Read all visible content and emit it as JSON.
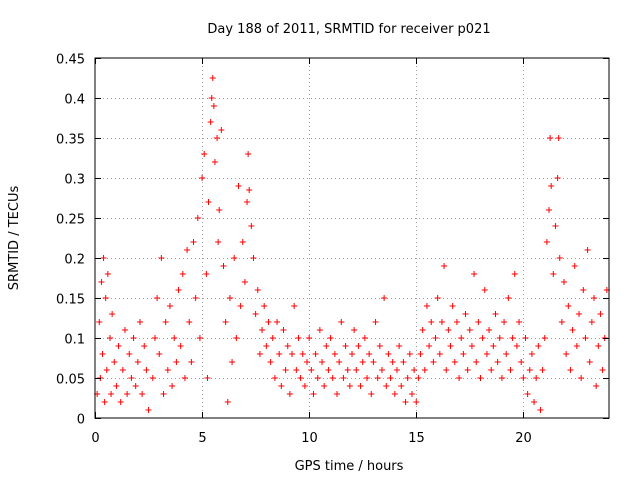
{
  "chart_data": {
    "type": "scatter",
    "title": "Day 188 of 2011, SRMTID for receiver p021",
    "xlabel": "GPS time / hours",
    "ylabel": "SRMTID / TECUs",
    "xlim": [
      0,
      24
    ],
    "ylim": [
      0,
      0.45
    ],
    "xticks": [
      0,
      5,
      10,
      15,
      20
    ],
    "xtick_labels": [
      "0",
      "5",
      "10",
      "15",
      "20"
    ],
    "yticks": [
      0,
      0.05,
      0.1,
      0.15,
      0.2,
      0.25,
      0.3,
      0.35,
      0.4,
      0.45
    ],
    "ytick_labels": [
      "0",
      "0.05",
      "0.1",
      "0.15",
      "0.2",
      "0.25",
      "0.3",
      "0.35",
      "0.4",
      "0.45"
    ],
    "grid": true,
    "marker": "+",
    "color": "#ff0000",
    "series": [
      {
        "name": "SRMTID",
        "points": [
          [
            0.1,
            0.03
          ],
          [
            0.2,
            0.12
          ],
          [
            0.25,
            0.05
          ],
          [
            0.3,
            0.17
          ],
          [
            0.35,
            0.08
          ],
          [
            0.4,
            0.2
          ],
          [
            0.45,
            0.02
          ],
          [
            0.5,
            0.15
          ],
          [
            0.55,
            0.06
          ],
          [
            0.6,
            0.18
          ],
          [
            0.7,
            0.1
          ],
          [
            0.75,
            0.03
          ],
          [
            0.8,
            0.13
          ],
          [
            0.9,
            0.07
          ],
          [
            1.0,
            0.04
          ],
          [
            1.1,
            0.09
          ],
          [
            1.2,
            0.02
          ],
          [
            1.3,
            0.06
          ],
          [
            1.4,
            0.11
          ],
          [
            1.5,
            0.03
          ],
          [
            1.6,
            0.08
          ],
          [
            1.7,
            0.05
          ],
          [
            1.8,
            0.1
          ],
          [
            1.9,
            0.04
          ],
          [
            2.0,
            0.07
          ],
          [
            2.1,
            0.12
          ],
          [
            2.2,
            0.03
          ],
          [
            2.3,
            0.09
          ],
          [
            2.4,
            0.06
          ],
          [
            2.5,
            0.01
          ],
          [
            2.7,
            0.05
          ],
          [
            2.8,
            0.1
          ],
          [
            2.9,
            0.15
          ],
          [
            3.0,
            0.08
          ],
          [
            3.1,
            0.2
          ],
          [
            3.2,
            0.03
          ],
          [
            3.3,
            0.12
          ],
          [
            3.4,
            0.06
          ],
          [
            3.5,
            0.14
          ],
          [
            3.6,
            0.04
          ],
          [
            3.7,
            0.1
          ],
          [
            3.8,
            0.07
          ],
          [
            3.9,
            0.16
          ],
          [
            4.0,
            0.09
          ],
          [
            4.1,
            0.18
          ],
          [
            4.2,
            0.05
          ],
          [
            4.3,
            0.21
          ],
          [
            4.4,
            0.12
          ],
          [
            4.5,
            0.07
          ],
          [
            4.6,
            0.22
          ],
          [
            4.7,
            0.15
          ],
          [
            4.8,
            0.25
          ],
          [
            4.9,
            0.1
          ],
          [
            5.0,
            0.3
          ],
          [
            5.1,
            0.33
          ],
          [
            5.2,
            0.18
          ],
          [
            5.25,
            0.05
          ],
          [
            5.3,
            0.27
          ],
          [
            5.4,
            0.37
          ],
          [
            5.45,
            0.4
          ],
          [
            5.5,
            0.425
          ],
          [
            5.55,
            0.39
          ],
          [
            5.6,
            0.32
          ],
          [
            5.7,
            0.35
          ],
          [
            5.75,
            0.22
          ],
          [
            5.8,
            0.26
          ],
          [
            5.9,
            0.36
          ],
          [
            6.0,
            0.19
          ],
          [
            6.1,
            0.12
          ],
          [
            6.2,
            0.02
          ],
          [
            6.3,
            0.15
          ],
          [
            6.4,
            0.07
          ],
          [
            6.5,
            0.2
          ],
          [
            6.6,
            0.1
          ],
          [
            6.7,
            0.29
          ],
          [
            6.8,
            0.14
          ],
          [
            6.9,
            0.22
          ],
          [
            7.0,
            0.17
          ],
          [
            7.1,
            0.27
          ],
          [
            7.15,
            0.33
          ],
          [
            7.2,
            0.285
          ],
          [
            7.3,
            0.24
          ],
          [
            7.4,
            0.2
          ],
          [
            7.5,
            0.13
          ],
          [
            7.6,
            0.16
          ],
          [
            7.7,
            0.08
          ],
          [
            7.8,
            0.11
          ],
          [
            7.9,
            0.14
          ],
          [
            8.0,
            0.09
          ],
          [
            8.1,
            0.12
          ],
          [
            8.2,
            0.07
          ],
          [
            8.3,
            0.1
          ],
          [
            8.4,
            0.05
          ],
          [
            8.5,
            0.12
          ],
          [
            8.6,
            0.08
          ],
          [
            8.7,
            0.04
          ],
          [
            8.8,
            0.11
          ],
          [
            8.9,
            0.06
          ],
          [
            9.0,
            0.09
          ],
          [
            9.1,
            0.03
          ],
          [
            9.2,
            0.08
          ],
          [
            9.3,
            0.14
          ],
          [
            9.4,
            0.06
          ],
          [
            9.5,
            0.1
          ],
          [
            9.6,
            0.05
          ],
          [
            9.7,
            0.08
          ],
          [
            9.8,
            0.04
          ],
          [
            9.9,
            0.07
          ],
          [
            10.0,
            0.1
          ],
          [
            10.1,
            0.06
          ],
          [
            10.2,
            0.03
          ],
          [
            10.3,
            0.08
          ],
          [
            10.4,
            0.05
          ],
          [
            10.5,
            0.11
          ],
          [
            10.6,
            0.07
          ],
          [
            10.7,
            0.04
          ],
          [
            10.8,
            0.09
          ],
          [
            10.9,
            0.06
          ],
          [
            11.0,
            0.1
          ],
          [
            11.1,
            0.05
          ],
          [
            11.2,
            0.08
          ],
          [
            11.3,
            0.03
          ],
          [
            11.4,
            0.07
          ],
          [
            11.5,
            0.12
          ],
          [
            11.6,
            0.05
          ],
          [
            11.7,
            0.09
          ],
          [
            11.8,
            0.06
          ],
          [
            11.9,
            0.04
          ],
          [
            12.0,
            0.08
          ],
          [
            12.1,
            0.11
          ],
          [
            12.2,
            0.06
          ],
          [
            12.3,
            0.09
          ],
          [
            12.4,
            0.04
          ],
          [
            12.5,
            0.07
          ],
          [
            12.6,
            0.1
          ],
          [
            12.7,
            0.05
          ],
          [
            12.8,
            0.08
          ],
          [
            12.9,
            0.03
          ],
          [
            13.0,
            0.07
          ],
          [
            13.1,
            0.12
          ],
          [
            13.2,
            0.05
          ],
          [
            13.3,
            0.09
          ],
          [
            13.4,
            0.06
          ],
          [
            13.5,
            0.15
          ],
          [
            13.6,
            0.04
          ],
          [
            13.7,
            0.08
          ],
          [
            13.8,
            0.05
          ],
          [
            13.9,
            0.07
          ],
          [
            14.0,
            0.03
          ],
          [
            14.1,
            0.06
          ],
          [
            14.2,
            0.09
          ],
          [
            14.3,
            0.04
          ],
          [
            14.4,
            0.07
          ],
          [
            14.5,
            0.02
          ],
          [
            14.6,
            0.05
          ],
          [
            14.7,
            0.08
          ],
          [
            14.8,
            0.03
          ],
          [
            14.9,
            0.06
          ],
          [
            15.0,
            0.02
          ],
          [
            15.1,
            0.05
          ],
          [
            15.2,
            0.08
          ],
          [
            15.3,
            0.11
          ],
          [
            15.4,
            0.06
          ],
          [
            15.5,
            0.14
          ],
          [
            15.6,
            0.09
          ],
          [
            15.7,
            0.12
          ],
          [
            15.8,
            0.07
          ],
          [
            15.9,
            0.1
          ],
          [
            16.0,
            0.15
          ],
          [
            16.1,
            0.08
          ],
          [
            16.2,
            0.12
          ],
          [
            16.3,
            0.19
          ],
          [
            16.4,
            0.06
          ],
          [
            16.5,
            0.11
          ],
          [
            16.6,
            0.09
          ],
          [
            16.7,
            0.14
          ],
          [
            16.8,
            0.07
          ],
          [
            16.9,
            0.12
          ],
          [
            17.0,
            0.05
          ],
          [
            17.1,
            0.1
          ],
          [
            17.2,
            0.08
          ],
          [
            17.3,
            0.13
          ],
          [
            17.4,
            0.06
          ],
          [
            17.5,
            0.11
          ],
          [
            17.6,
            0.09
          ],
          [
            17.7,
            0.18
          ],
          [
            17.8,
            0.07
          ],
          [
            17.9,
            0.12
          ],
          [
            18.0,
            0.05
          ],
          [
            18.1,
            0.1
          ],
          [
            18.2,
            0.16
          ],
          [
            18.3,
            0.08
          ],
          [
            18.4,
            0.11
          ],
          [
            18.5,
            0.06
          ],
          [
            18.6,
            0.09
          ],
          [
            18.7,
            0.13
          ],
          [
            18.8,
            0.07
          ],
          [
            18.9,
            0.1
          ],
          [
            19.0,
            0.05
          ],
          [
            19.1,
            0.12
          ],
          [
            19.2,
            0.08
          ],
          [
            19.3,
            0.15
          ],
          [
            19.4,
            0.06
          ],
          [
            19.5,
            0.1
          ],
          [
            19.6,
            0.18
          ],
          [
            19.7,
            0.09
          ],
          [
            19.8,
            0.12
          ],
          [
            19.9,
            0.07
          ],
          [
            20.0,
            0.05
          ],
          [
            20.1,
            0.1
          ],
          [
            20.2,
            0.03
          ],
          [
            20.3,
            0.06
          ],
          [
            20.4,
            0.08
          ],
          [
            20.5,
            0.02
          ],
          [
            20.6,
            0.05
          ],
          [
            20.7,
            0.09
          ],
          [
            20.8,
            0.01
          ],
          [
            20.9,
            0.06
          ],
          [
            21.0,
            0.1
          ],
          [
            21.1,
            0.22
          ],
          [
            21.2,
            0.26
          ],
          [
            21.25,
            0.35
          ],
          [
            21.3,
            0.29
          ],
          [
            21.4,
            0.18
          ],
          [
            21.5,
            0.24
          ],
          [
            21.6,
            0.3
          ],
          [
            21.65,
            0.35
          ],
          [
            21.7,
            0.2
          ],
          [
            21.8,
            0.12
          ],
          [
            21.9,
            0.17
          ],
          [
            22.0,
            0.08
          ],
          [
            22.1,
            0.14
          ],
          [
            22.2,
            0.06
          ],
          [
            22.3,
            0.11
          ],
          [
            22.4,
            0.19
          ],
          [
            22.5,
            0.09
          ],
          [
            22.6,
            0.13
          ],
          [
            22.7,
            0.05
          ],
          [
            22.8,
            0.16
          ],
          [
            22.9,
            0.1
          ],
          [
            23.0,
            0.21
          ],
          [
            23.1,
            0.07
          ],
          [
            23.2,
            0.12
          ],
          [
            23.3,
            0.15
          ],
          [
            23.4,
            0.04
          ],
          [
            23.5,
            0.09
          ],
          [
            23.6,
            0.13
          ],
          [
            23.7,
            0.06
          ],
          [
            23.8,
            0.1
          ],
          [
            23.9,
            0.16
          ]
        ]
      }
    ]
  }
}
